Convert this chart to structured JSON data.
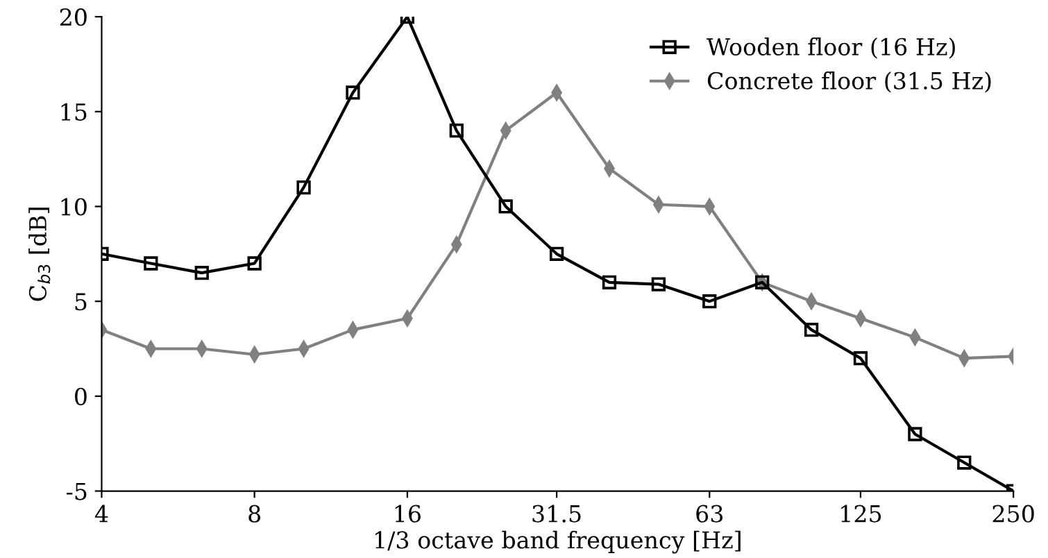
{
  "chart_data": {
    "type": "line",
    "xlabel": "1/3 octave band frequency [Hz]",
    "ylabel": "C$_{b3}$ [dB]",
    "x": [
      4,
      5,
      6.3,
      8,
      10,
      12.5,
      16,
      20,
      25,
      31.5,
      40,
      50,
      63,
      80,
      100,
      125,
      160,
      200,
      250
    ],
    "series": [
      {
        "name": "Wooden floor (16 Hz)",
        "color": "#000000",
        "marker": "square",
        "values": [
          7.5,
          7,
          6.5,
          7,
          11,
          16,
          20,
          14,
          10,
          7.5,
          6,
          5.9,
          5,
          6,
          3.5,
          2,
          -2,
          -3.5,
          -5
        ]
      },
      {
        "name": "Concrete floor (31.5 Hz)",
        "color": "#808080",
        "marker": "diamond",
        "values": [
          3.5,
          2.5,
          2.5,
          2.2,
          2.5,
          3.5,
          4.1,
          8,
          14,
          16,
          12,
          10.1,
          10,
          6,
          5,
          4.1,
          3.1,
          2,
          2.1
        ]
      }
    ],
    "log": "x",
    "xlim": [
      4,
      250
    ],
    "xticks": [
      4,
      8,
      16,
      31.5,
      63,
      125,
      250
    ],
    "ylim": [
      -5,
      20
    ],
    "yticks": [
      -5,
      0,
      5,
      10,
      15,
      20
    ],
    "grid": false,
    "legend": "top right",
    "line_style": "solid"
  }
}
